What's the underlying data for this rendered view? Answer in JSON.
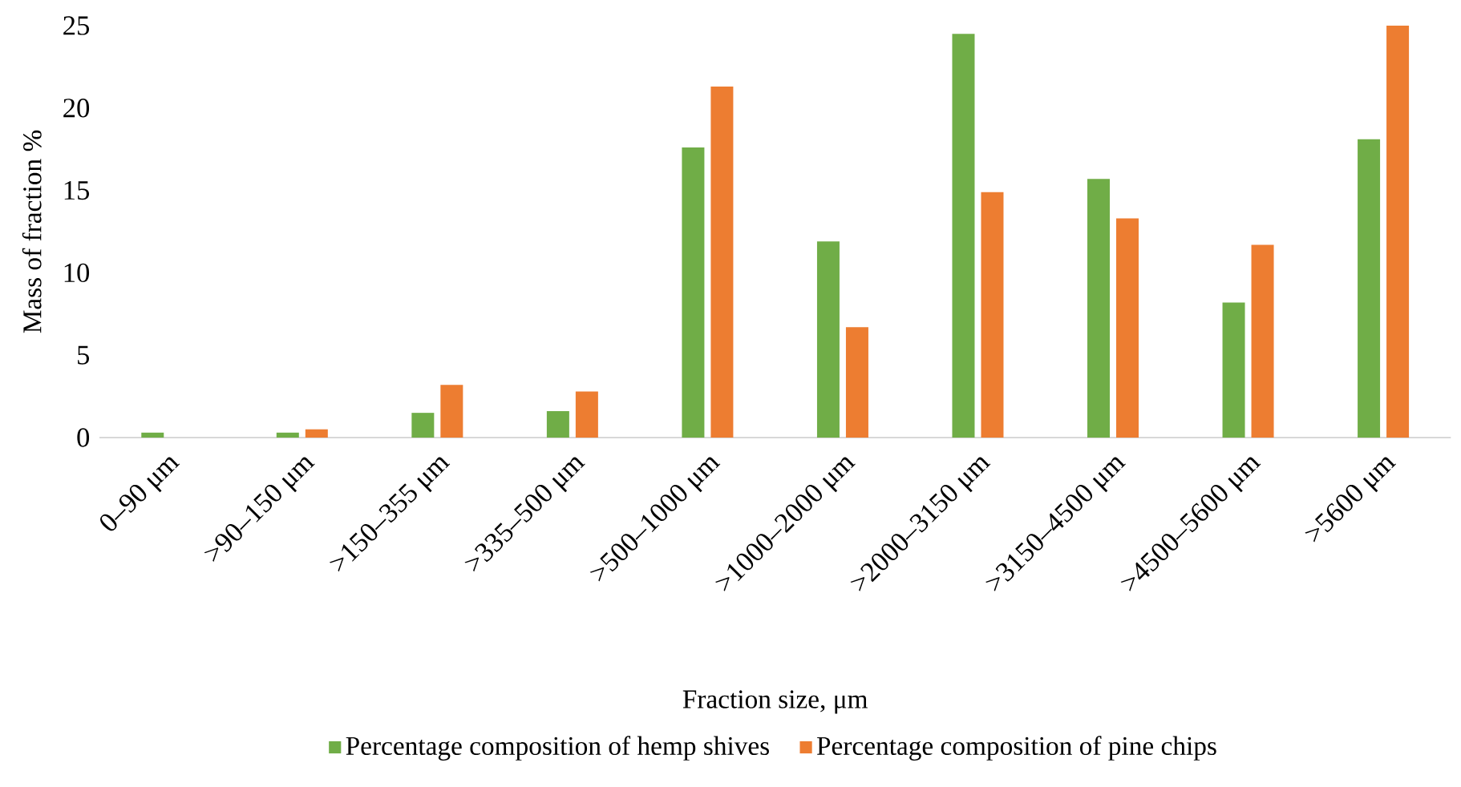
{
  "chart_data": {
    "type": "bar",
    "categories": [
      "0–90 μm",
      ">90–150 μm",
      ">150–355 μm",
      ">335–500 μm",
      ">500–1000 μm",
      ">1000–2000 μm",
      ">2000–3150 μm",
      ">3150–4500 μm",
      ">4500–5600 μm",
      ">5600 μm"
    ],
    "series": [
      {
        "name": "Percentage composition of hemp shives",
        "color": "#70ad47",
        "values": [
          0.3,
          0.3,
          1.5,
          1.6,
          17.6,
          11.9,
          24.5,
          15.7,
          8.2,
          18.1
        ]
      },
      {
        "name": "Percentage composition of pine chips",
        "color": "#ed7d31",
        "values": [
          0,
          0.5,
          3.2,
          2.8,
          21.3,
          6.7,
          14.9,
          13.3,
          11.7,
          25
        ]
      }
    ],
    "xlabel": "Fraction size, μm",
    "ylabel": "Mass of fraction %",
    "ylim": [
      0,
      25
    ],
    "yticks": [
      0,
      5,
      10,
      15,
      20,
      25
    ],
    "legend": "bottom"
  }
}
